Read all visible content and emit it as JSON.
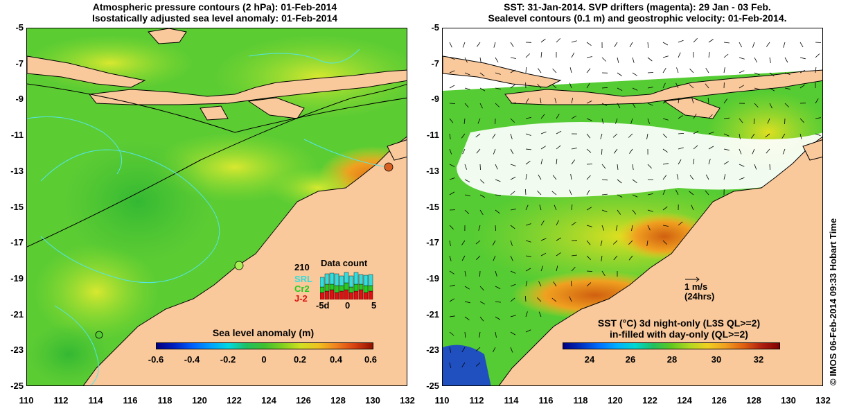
{
  "left_panel": {
    "title_line1": "Atmospheric pressure contours (2 hPa): 01-Feb-2014",
    "title_line2": "Isostatically adjusted sea level anomaly: 01-Feb-2014",
    "colorbar": {
      "title": "Sea level anomaly (m)",
      "ticks": [
        "-0.6",
        "-0.4",
        "-0.2",
        "0",
        "0.2",
        "0.4",
        "0.6"
      ]
    },
    "data_count": {
      "title": "Data count",
      "max_label": "210",
      "x_ticks": [
        "-5d",
        "0",
        "5"
      ],
      "legend": [
        {
          "label": "SRL",
          "color": "#33dddd"
        },
        {
          "label": "Cr2",
          "color": "#22cc22"
        },
        {
          "label": "J-2",
          "color": "#dd1111"
        }
      ]
    }
  },
  "right_panel": {
    "title_line1": "SST: 31-Jan-2014. SVP drifters (magenta): 29 Jan - 03 Feb.",
    "title_line2": "Sealevel contours (0.1 m) and geostrophic velocity: 01-Feb-2014.",
    "scale_arrow_label1": "1 m/s",
    "scale_arrow_label2": "(24hrs)",
    "colorbar": {
      "title_line1": "SST (°C)  3d night-only (L3S QL>=2)",
      "title_line2": "in-filled with day-only (QL>=2)",
      "ticks": [
        "24",
        "26",
        "28",
        "30",
        "32"
      ]
    }
  },
  "axes": {
    "y_ticks": [
      "-5",
      "-7",
      "-9",
      "-11",
      "-13",
      "-15",
      "-17",
      "-19",
      "-21",
      "-23",
      "-25"
    ],
    "x_ticks": [
      "110",
      "112",
      "114",
      "116",
      "118",
      "120",
      "122",
      "124",
      "126",
      "128",
      "130",
      "132"
    ]
  },
  "credit": "© IMOS 06-Feb-2014 09:33 Hobart Time",
  "colors": {
    "land": "#f9c89b",
    "sea_green": "#55cc33",
    "coast_line": "#000000",
    "contour_cyan": "#55e6e6"
  }
}
